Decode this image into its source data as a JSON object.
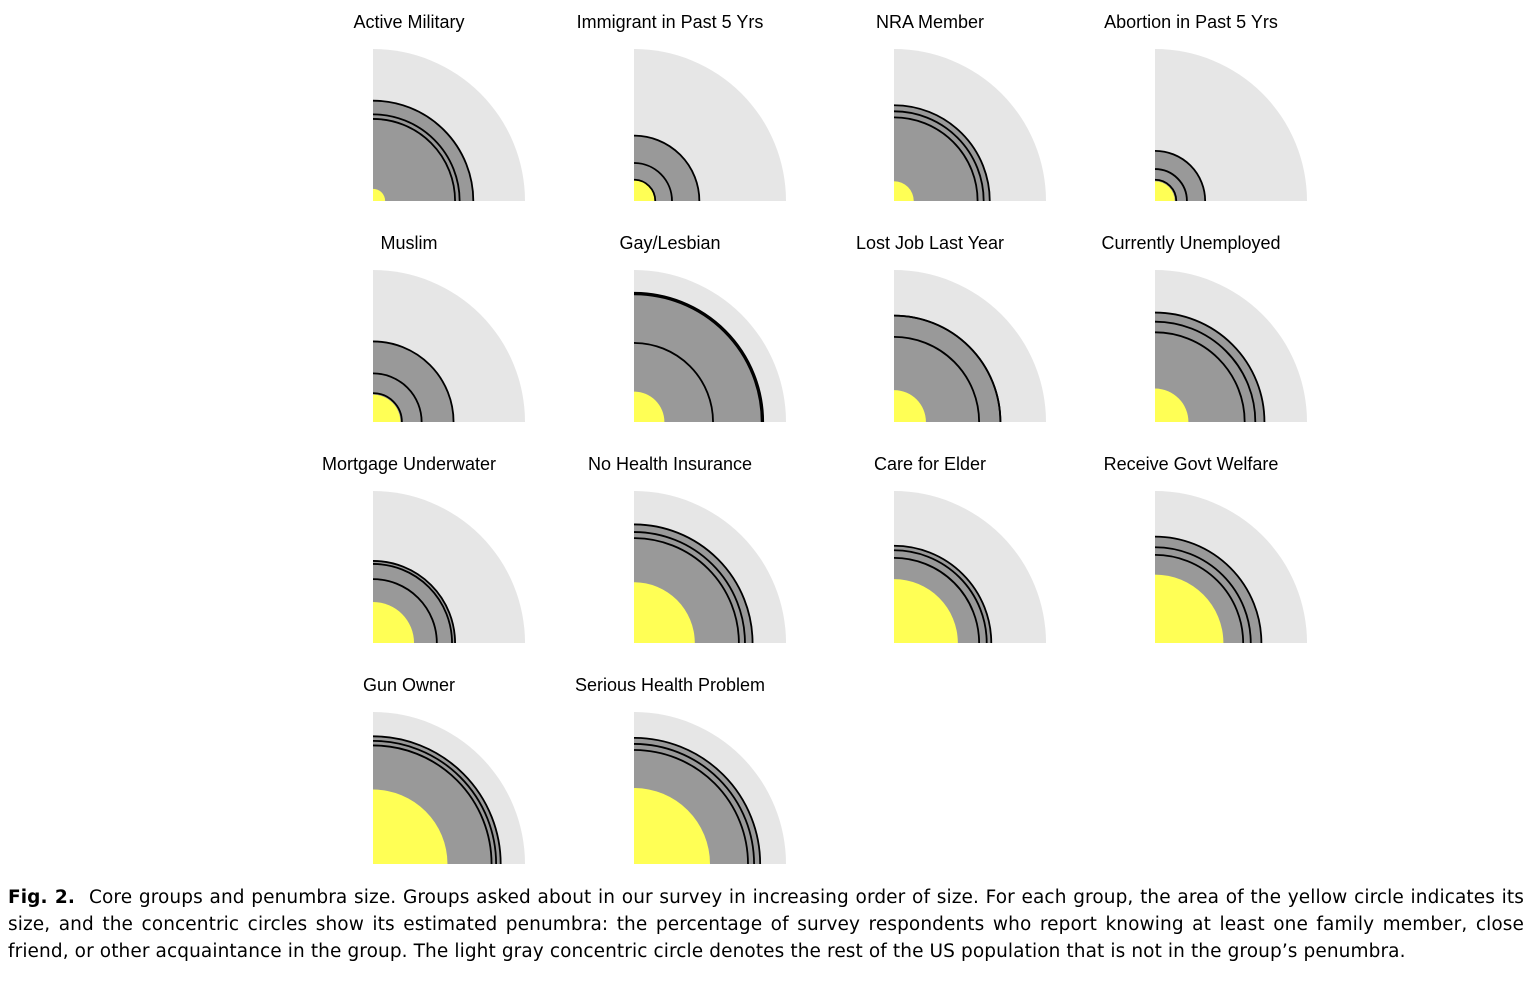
{
  "caption": {
    "label": "Fig. 2.",
    "text": "Core groups and penumbra size. Groups asked about in our survey in increasing order of size. For each group, the area of the yellow circle indicates its size, and the concentric circles show its estimated penumbra: the percentage of survey respondents who report knowing at least one family member, close friend, or other acquaintance in the group. The light gray concentric circle denotes the rest of the US population that is not in the group’s penumbra."
  },
  "colors": {
    "core": "#ffff55",
    "penumbra": "#999999",
    "rest": "#e6e6e6",
    "ring_stroke": "#000000"
  },
  "chart_data": {
    "type": "quarter-circle area chart (small multiples)",
    "outer_radius_value": 1.0,
    "notes": "Radii are fractions of the full quarter-circle radius (US population). rings = [family, close friend, acquaintance] penumbra radii, innermost first.",
    "panels": [
      {
        "title": "Active Military",
        "core": 0.08,
        "rings": [
          0.54,
          0.57,
          0.66
        ]
      },
      {
        "title": "Immigrant in Past 5 Yrs",
        "core": 0.14,
        "rings": [
          0.14,
          0.25,
          0.43
        ]
      },
      {
        "title": "NRA Member",
        "core": 0.13,
        "rings": [
          0.55,
          0.59,
          0.63
        ]
      },
      {
        "title": "Abortion in Past 5 Yrs",
        "core": 0.13,
        "rings": [
          0.14,
          0.21,
          0.33
        ]
      },
      {
        "title": "Muslim",
        "core": 0.18,
        "rings": [
          0.19,
          0.32,
          0.53
        ]
      },
      {
        "title": "Gay/Lesbian",
        "core": 0.2,
        "rings": [
          0.52,
          0.84,
          0.85
        ]
      },
      {
        "title": "Lost Job Last Year",
        "core": 0.21,
        "rings": [
          0.56,
          0.7,
          0.7
        ]
      },
      {
        "title": "Currently Unemployed",
        "core": 0.22,
        "rings": [
          0.59,
          0.66,
          0.72
        ]
      },
      {
        "title": "Mortgage Underwater",
        "core": 0.27,
        "rings": [
          0.42,
          0.52,
          0.54
        ]
      },
      {
        "title": "No Health Insurance",
        "core": 0.4,
        "rings": [
          0.69,
          0.73,
          0.78
        ]
      },
      {
        "title": "Care for Elder",
        "core": 0.42,
        "rings": [
          0.56,
          0.61,
          0.64
        ]
      },
      {
        "title": "Receive Govt Welfare",
        "core": 0.45,
        "rings": [
          0.58,
          0.63,
          0.7
        ]
      },
      {
        "title": "Gun Owner",
        "core": 0.49,
        "rings": [
          0.78,
          0.81,
          0.84
        ]
      },
      {
        "title": "Serious Health Problem",
        "core": 0.5,
        "rings": [
          0.75,
          0.79,
          0.83
        ]
      }
    ]
  }
}
